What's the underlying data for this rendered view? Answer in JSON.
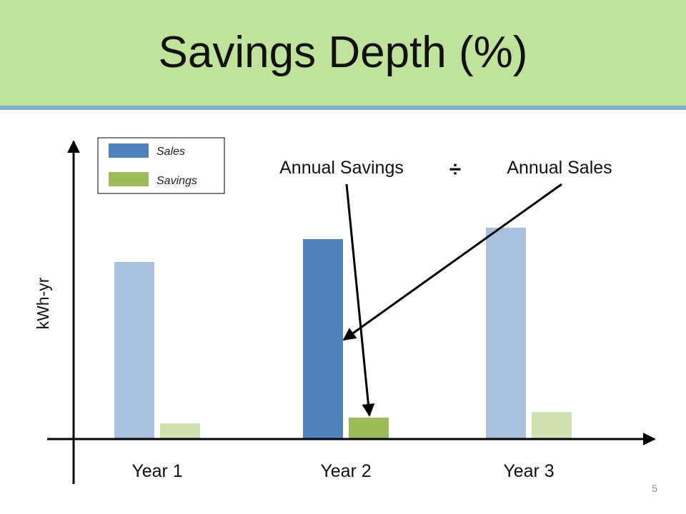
{
  "slide": {
    "title": "Savings Depth (%)",
    "page_number": "5"
  },
  "annotations": {
    "numerator": "Annual Savings",
    "operator": "÷",
    "denominator": "Annual Sales"
  },
  "colors": {
    "sales": "#4f81bd",
    "sales_faded": "#a9c0df",
    "savings": "#9bbb59",
    "savings_faded": "#d1e0b1",
    "title_band": "#bfe39b",
    "title_rule": "#7fb0c9"
  },
  "chart_data": {
    "type": "bar",
    "categories": [
      "Year 1",
      "Year 2",
      "Year 3"
    ],
    "series": [
      {
        "name": "Sales",
        "values": [
          62,
          70,
          74
        ]
      },
      {
        "name": "Savings",
        "values": [
          5.5,
          7.5,
          9.5
        ]
      }
    ],
    "highlighted_category": "Year 2",
    "ylabel": "kWh-yr",
    "xlabel": "",
    "ylim": [
      0,
      100
    ],
    "show_tick_values": false,
    "grid": false,
    "legend": "top-left"
  }
}
